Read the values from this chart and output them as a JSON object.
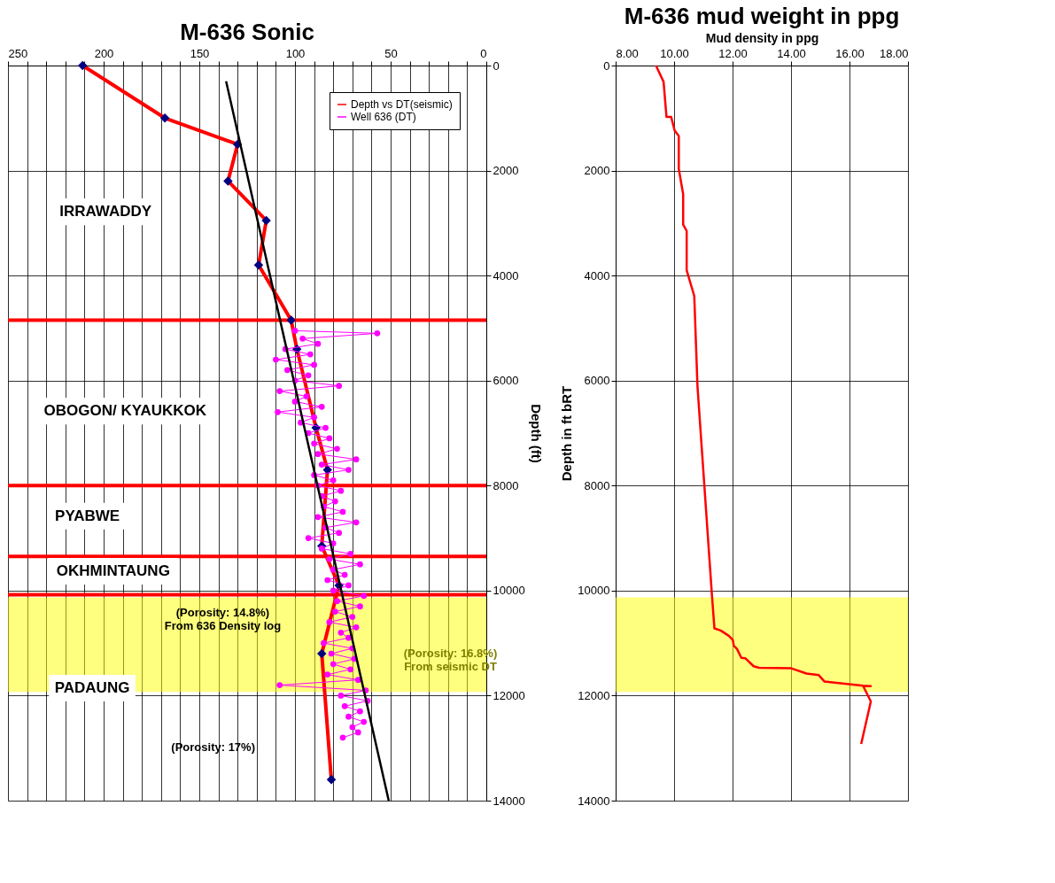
{
  "chart_data": [
    {
      "type": "line",
      "title": "M-636 Sonic",
      "ylabel": "Depth (ft)",
      "xlim": [
        250,
        0
      ],
      "ylim": [
        14000,
        0
      ],
      "xticks": [
        250,
        {
          "value": 240,
          "label": null
        },
        {
          "value": 230,
          "label": null
        },
        {
          "value": 220,
          "label": null
        },
        {
          "value": 210,
          "label": null
        },
        200,
        {
          "value": 190,
          "label": null
        },
        {
          "value": 180,
          "label": null
        },
        {
          "value": 170,
          "label": null
        },
        {
          "value": 160,
          "label": null
        },
        150,
        {
          "value": 140,
          "label": null
        },
        {
          "value": 130,
          "label": null
        },
        {
          "value": 120,
          "label": null
        },
        {
          "value": 110,
          "label": null
        },
        100,
        {
          "value": 90,
          "label": null
        },
        {
          "value": 80,
          "label": null
        },
        {
          "value": 70,
          "label": null
        },
        {
          "value": 60,
          "label": null
        },
        50,
        {
          "value": 40,
          "label": null
        },
        {
          "value": 30,
          "label": null
        },
        {
          "value": 20,
          "label": null
        },
        {
          "value": 10,
          "label": null
        },
        0
      ],
      "yticks": [
        0,
        2000,
        4000,
        6000,
        8000,
        10000,
        12000,
        14000
      ],
      "grid": true,
      "legend": "top right",
      "series": [
        {
          "name": "Depth vs DT(seismic)",
          "color": "#ff0000",
          "colors": [
            "#000080",
            "#000080",
            "#000080",
            "#000080",
            "#000080",
            "#000080",
            "#000080",
            "#000080",
            "#000080",
            "#000080",
            "#000080",
            "#000080",
            "#000080",
            "#000080"
          ],
          "marker": "diamond",
          "x": [
            211,
            168,
            130,
            135,
            115,
            119,
            102,
            99,
            89,
            83,
            86,
            77,
            86,
            81
          ],
          "values": [
            0,
            1000,
            1500,
            2200,
            2950,
            3800,
            4850,
            5400,
            6900,
            7700,
            9150,
            9900,
            11200,
            13600
          ]
        },
        {
          "name": "Well 636 (DT)",
          "color": "#ff00ff",
          "marker": "circle",
          "x": [
            100,
            57,
            96,
            88,
            105,
            92,
            110,
            90,
            104,
            93,
            100,
            77,
            108,
            94,
            100,
            86,
            109,
            90,
            97,
            84,
            93,
            82,
            90,
            78,
            88,
            68,
            86,
            72,
            90,
            80,
            88,
            76,
            86,
            79,
            85,
            75,
            88,
            68,
            84,
            77,
            93,
            80,
            86,
            71,
            82,
            66,
            80,
            74,
            83,
            72,
            80,
            64,
            78,
            66,
            79,
            70,
            82,
            68,
            76,
            72,
            85,
            70,
            81,
            69,
            80,
            71,
            83,
            67,
            108,
            63,
            76,
            62,
            74,
            66,
            72,
            64,
            70,
            67,
            75
          ],
          "values": [
            5050,
            5100,
            5200,
            5300,
            5400,
            5500,
            5600,
            5700,
            5800,
            5900,
            6000,
            6100,
            6200,
            6300,
            6400,
            6500,
            6600,
            6700,
            6800,
            6900,
            7000,
            7100,
            7200,
            7300,
            7400,
            7500,
            7600,
            7700,
            7800,
            7900,
            8000,
            8100,
            8200,
            8300,
            8400,
            8500,
            8600,
            8700,
            8800,
            8900,
            9000,
            9100,
            9200,
            9300,
            9400,
            9500,
            9600,
            9700,
            9800,
            9900,
            10000,
            10100,
            10200,
            10300,
            10400,
            10500,
            10600,
            10700,
            10800,
            10900,
            11000,
            11100,
            11200,
            11300,
            11400,
            11500,
            11600,
            11700,
            11800,
            11900,
            12000,
            12100,
            12200,
            12300,
            12400,
            12500,
            12600,
            12700,
            12800
          ]
        },
        {
          "color": "#000000",
          "marker": "none",
          "x": [
            136,
            51
          ],
          "values": [
            300,
            14000
          ]
        }
      ],
      "ref_lines": [
        {
          "axis": "y",
          "value": 4850,
          "color": "#ff0000"
        },
        {
          "axis": "y",
          "value": 8000,
          "color": "#ff0000"
        },
        {
          "axis": "y",
          "value": 9350,
          "color": "#ff0000"
        },
        {
          "axis": "y",
          "value": 10080,
          "color": "#ff0000"
        }
      ],
      "bands": [
        {
          "axis": "y",
          "from": 10130,
          "to": 11930,
          "color": "#ffff00"
        }
      ],
      "annotations": [
        "IRRAWADDY",
        "OBOGON/ KYAUKKOK",
        "PYABWE",
        "OKHMINTAUNG",
        "PADAUNG",
        "(Porosity: 14.8%)\nFrom 636 Density  log",
        "(Porosity: 16.8%)\nFrom seismic DT",
        "(Porosity: 17%)"
      ]
    },
    {
      "type": "line",
      "title": "M-636 mud weight in ppg",
      "xlabel": "Mud density in ppg",
      "ylabel": "Depth in ft bRT",
      "xlim": [
        8,
        18
      ],
      "ylim": [
        14000,
        0
      ],
      "xticks": [
        {
          "value": 8,
          "label": "8.00"
        },
        {
          "value": 10,
          "label": "10.00"
        },
        {
          "value": 12,
          "label": "12.00"
        },
        {
          "value": 14,
          "label": "14.00"
        },
        {
          "value": 16,
          "label": "16.00"
        },
        {
          "value": 18,
          "label": "18.00"
        }
      ],
      "yticks": [
        0,
        2000,
        4000,
        6000,
        8000,
        10000,
        12000,
        14000
      ],
      "grid": true,
      "series": [
        {
          "color": "#ff0000",
          "marker": "none",
          "x": [
            9.38,
            9.64,
            9.74,
            9.9,
            10.02,
            10.16,
            10.16,
            10.31,
            10.31,
            10.43,
            10.43,
            10.69,
            10.8,
            11.3,
            11.38,
            11.59,
            11.87,
            12.01,
            12.04,
            12.15,
            12.3,
            12.44,
            12.72,
            12.91,
            14.01,
            14.53,
            14.95,
            15.14,
            16.47,
            16.73,
            16.47,
            16.73,
            16.4
          ],
          "values": [
            0,
            310,
            980,
            980,
            1240,
            1340,
            1970,
            2450,
            3030,
            3150,
            3900,
            4390,
            6110,
            10130,
            10720,
            10760,
            10860,
            10940,
            11050,
            11110,
            11280,
            11290,
            11440,
            11470,
            11480,
            11580,
            11610,
            11730,
            11810,
            11820,
            11820,
            12110,
            12920
          ]
        }
      ],
      "bands": [
        {
          "axis": "y",
          "from": 10130,
          "to": 11930,
          "color": "#ffff00"
        }
      ]
    }
  ]
}
